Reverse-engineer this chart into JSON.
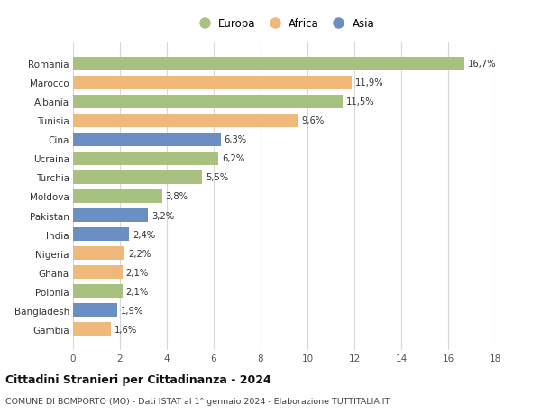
{
  "categories": [
    "Gambia",
    "Bangladesh",
    "Polonia",
    "Ghana",
    "Nigeria",
    "India",
    "Pakistan",
    "Moldova",
    "Turchia",
    "Ucraina",
    "Cina",
    "Tunisia",
    "Albania",
    "Marocco",
    "Romania"
  ],
  "values": [
    1.6,
    1.9,
    2.1,
    2.1,
    2.2,
    2.4,
    3.2,
    3.8,
    5.5,
    6.2,
    6.3,
    9.6,
    11.5,
    11.9,
    16.7
  ],
  "continents": [
    "Africa",
    "Asia",
    "Europa",
    "Africa",
    "Africa",
    "Asia",
    "Asia",
    "Europa",
    "Europa",
    "Europa",
    "Asia",
    "Africa",
    "Europa",
    "Africa",
    "Europa"
  ],
  "colors": {
    "Europa": "#a8c080",
    "Africa": "#f0b87a",
    "Asia": "#6b8ec4"
  },
  "labels": [
    "1,6%",
    "1,9%",
    "2,1%",
    "2,1%",
    "2,2%",
    "2,4%",
    "3,2%",
    "3,8%",
    "5,5%",
    "6,2%",
    "6,3%",
    "9,6%",
    "11,5%",
    "11,9%",
    "16,7%"
  ],
  "xlim": [
    0,
    18
  ],
  "xticks": [
    0,
    2,
    4,
    6,
    8,
    10,
    12,
    14,
    16,
    18
  ],
  "title": "Cittadini Stranieri per Cittadinanza - 2024",
  "subtitle": "COMUNE DI BOMPORTO (MO) - Dati ISTAT al 1° gennaio 2024 - Elaborazione TUTTITALIA.IT",
  "background_color": "#ffffff",
  "grid_color": "#d8d8d8",
  "bar_height": 0.72,
  "legend_entries": [
    "Europa",
    "Africa",
    "Asia"
  ]
}
